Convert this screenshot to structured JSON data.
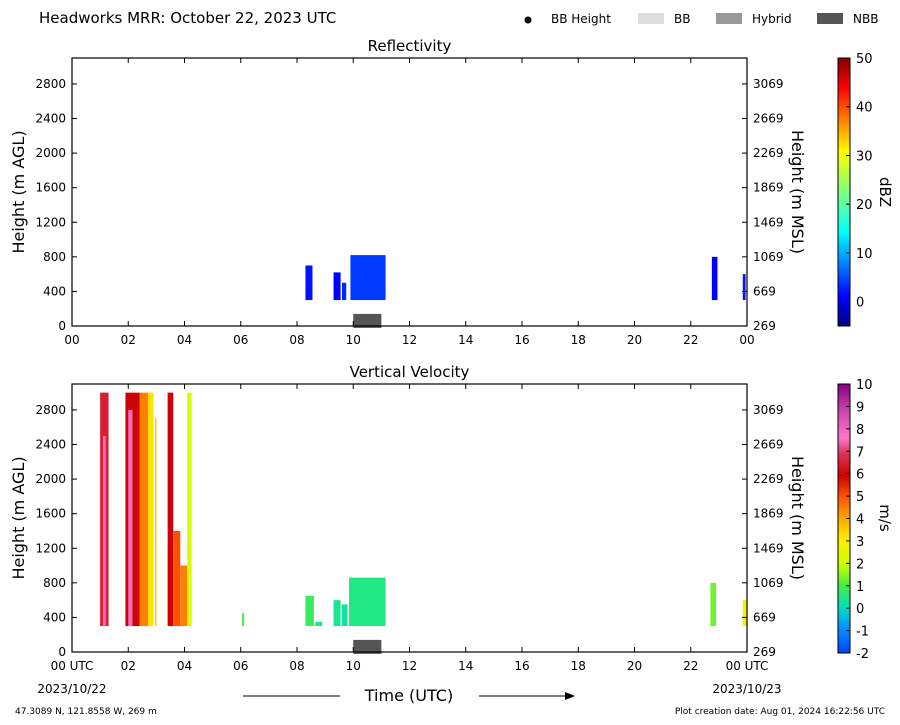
{
  "header": {
    "title": "Headworks MRR:  October 22, 2023 UTC",
    "legend": [
      {
        "label": "BB Height",
        "kind": "dot",
        "color": "#000000"
      },
      {
        "label": "BB",
        "kind": "box",
        "color": "#dddddd"
      },
      {
        "label": "Hybrid",
        "kind": "box",
        "color": "#999999"
      },
      {
        "label": "NBB",
        "kind": "box",
        "color": "#555555"
      }
    ]
  },
  "footer": {
    "xlabel": "Time (UTC)",
    "start_date": "2023/10/22",
    "end_date": "2023/10/23",
    "location": "47.3089 N, 121.8558 W, 269 m",
    "creation": "Plot creation date: Aug 01, 2024 16:22:56 UTC"
  },
  "chart_data": [
    {
      "type": "heatmap",
      "title": "Reflectivity",
      "ylabel": "Height (m AGL)",
      "y2label": "Height (m MSL)",
      "xlim": [
        0,
        24
      ],
      "ylim": [
        0,
        3100
      ],
      "x_ticks": [
        "00",
        "02",
        "04",
        "06",
        "08",
        "10",
        "12",
        "14",
        "16",
        "18",
        "20",
        "22",
        "00"
      ],
      "y_ticks": [
        0,
        400,
        800,
        1200,
        1600,
        2000,
        2400,
        2800
      ],
      "y2_ticks": [
        269,
        669,
        1069,
        1469,
        1869,
        2269,
        2669,
        3069
      ],
      "colorbar": {
        "label": "dBZ",
        "min": -5,
        "max": 50,
        "ticks": [
          0,
          10,
          20,
          30,
          40,
          50
        ],
        "scale": "jet"
      },
      "segments": [
        {
          "x0": 8.3,
          "x1": 8.55,
          "top": 700,
          "value": 2
        },
        {
          "x0": 9.3,
          "x1": 9.55,
          "top": 620,
          "value": 1
        },
        {
          "x0": 9.6,
          "x1": 9.75,
          "top": 500,
          "value": 3
        },
        {
          "x0": 9.9,
          "x1": 11.15,
          "top": 820,
          "value": 4
        },
        {
          "x0": 22.75,
          "x1": 22.95,
          "top": 800,
          "value": 1
        },
        {
          "x0": 23.85,
          "x1": 23.95,
          "top": 600,
          "value": 2
        }
      ],
      "nbb": [
        {
          "x0": 10.0,
          "x1": 11.0
        }
      ]
    },
    {
      "type": "heatmap",
      "title": "Vertical Velocity",
      "ylabel": "Height (m AGL)",
      "y2label": "Height (m MSL)",
      "xlim": [
        0,
        24
      ],
      "ylim": [
        0,
        3100
      ],
      "x_ticks": [
        "00 UTC",
        "02",
        "04",
        "06",
        "08",
        "10",
        "12",
        "14",
        "16",
        "18",
        "20",
        "22",
        "00 UTC"
      ],
      "y_ticks": [
        0,
        400,
        800,
        1200,
        1600,
        2000,
        2400,
        2800
      ],
      "y2_ticks": [
        269,
        669,
        1069,
        1469,
        1869,
        2269,
        2669,
        3069
      ],
      "colorbar": {
        "label": "m/s",
        "min": -2,
        "max": 10,
        "ticks": [
          -2,
          -1,
          0,
          1,
          2,
          3,
          4,
          5,
          6,
          7,
          8,
          9,
          10
        ],
        "scale": "velocity"
      },
      "segments": [
        {
          "x0": 1.0,
          "x1": 1.3,
          "top": 3000,
          "value": 6.5
        },
        {
          "x0": 1.1,
          "x1": 1.2,
          "top": 2500,
          "value": 7.5
        },
        {
          "x0": 1.9,
          "x1": 2.4,
          "top": 3000,
          "value": 6.0
        },
        {
          "x0": 2.0,
          "x1": 2.15,
          "top": 2800,
          "value": 7.5
        },
        {
          "x0": 2.4,
          "x1": 2.7,
          "top": 3000,
          "value": 4.5
        },
        {
          "x0": 2.7,
          "x1": 2.9,
          "top": 3000,
          "value": 3.2
        },
        {
          "x0": 2.95,
          "x1": 3.0,
          "top": 2700,
          "value": 3.5
        },
        {
          "x0": 3.4,
          "x1": 3.6,
          "top": 3000,
          "value": 6.0
        },
        {
          "x0": 3.6,
          "x1": 3.85,
          "top": 1400,
          "value": 5.0
        },
        {
          "x0": 3.85,
          "x1": 4.1,
          "top": 1000,
          "value": 4.5
        },
        {
          "x0": 4.1,
          "x1": 4.25,
          "top": 3000,
          "value": 2.2
        },
        {
          "x0": 6.05,
          "x1": 6.12,
          "top": 450,
          "value": 1.0
        },
        {
          "x0": 8.3,
          "x1": 8.6,
          "top": 650,
          "value": 0.8
        },
        {
          "x0": 8.65,
          "x1": 8.9,
          "top": 350,
          "value": 0.5
        },
        {
          "x0": 9.3,
          "x1": 9.55,
          "top": 600,
          "value": 0.4
        },
        {
          "x0": 9.6,
          "x1": 9.8,
          "top": 550,
          "value": 0.3
        },
        {
          "x0": 9.85,
          "x1": 11.15,
          "top": 860,
          "value": 0.5
        },
        {
          "x0": 22.7,
          "x1": 22.9,
          "top": 800,
          "value": 1.3
        },
        {
          "x0": 23.85,
          "x1": 23.98,
          "top": 600,
          "value": 3.0
        }
      ],
      "nbb": [
        {
          "x0": 10.0,
          "x1": 11.0
        }
      ]
    }
  ]
}
